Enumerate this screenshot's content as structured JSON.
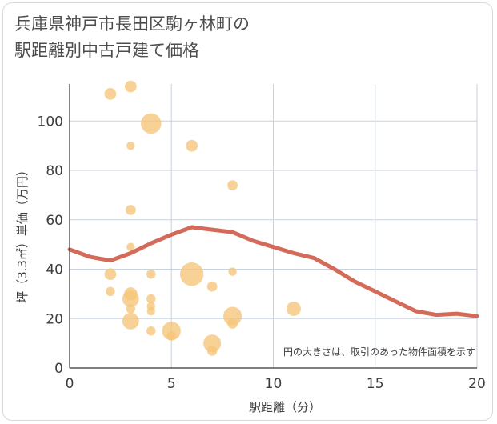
{
  "header": {
    "title": "兵庫県神戸市長田区駒ヶ林町の\n駅距離別中古戸建て価格"
  },
  "colors": {
    "bubble": "#f5c57a",
    "line": "#d46a5a",
    "grid": "#c8d2dc"
  },
  "chart_data": {
    "type": "scatter",
    "xlabel": "駅距離（分）",
    "ylabel": "坪（3.3㎡）単価（万円）",
    "xlim": [
      0,
      20
    ],
    "ylim": [
      0,
      115
    ],
    "xticks": [
      0,
      5,
      10,
      15,
      20
    ],
    "yticks": [
      0,
      20,
      40,
      60,
      80,
      100
    ],
    "note": "円の大きさは、取引のあった物件面積を示す",
    "points": [
      {
        "x": 2,
        "y": 111,
        "size": 2
      },
      {
        "x": 3,
        "y": 114,
        "size": 2
      },
      {
        "x": 4,
        "y": 99,
        "size": 6
      },
      {
        "x": 3,
        "y": 90,
        "size": 1
      },
      {
        "x": 6,
        "y": 90,
        "size": 2
      },
      {
        "x": 3,
        "y": 64,
        "size": 1.5
      },
      {
        "x": 8,
        "y": 74,
        "size": 1.5
      },
      {
        "x": 3,
        "y": 49,
        "size": 1
      },
      {
        "x": 2,
        "y": 38,
        "size": 2
      },
      {
        "x": 4,
        "y": 38,
        "size": 1.2
      },
      {
        "x": 6,
        "y": 38,
        "size": 8
      },
      {
        "x": 8,
        "y": 39,
        "size": 1
      },
      {
        "x": 7,
        "y": 33,
        "size": 1.5
      },
      {
        "x": 2,
        "y": 31,
        "size": 1.2
      },
      {
        "x": 3,
        "y": 30,
        "size": 2.5
      },
      {
        "x": 3,
        "y": 28,
        "size": 4
      },
      {
        "x": 4,
        "y": 28,
        "size": 1.2
      },
      {
        "x": 3,
        "y": 24,
        "size": 1.2
      },
      {
        "x": 4,
        "y": 25,
        "size": 1
      },
      {
        "x": 4,
        "y": 23,
        "size": 1
      },
      {
        "x": 3,
        "y": 19,
        "size": 4
      },
      {
        "x": 8,
        "y": 21,
        "size": 5
      },
      {
        "x": 8,
        "y": 18,
        "size": 1.5
      },
      {
        "x": 11,
        "y": 24,
        "size": 3
      },
      {
        "x": 4,
        "y": 15,
        "size": 1.2
      },
      {
        "x": 5,
        "y": 15,
        "size": 5
      },
      {
        "x": 5,
        "y": 13,
        "size": 1.2
      },
      {
        "x": 7,
        "y": 10,
        "size": 4.5
      },
      {
        "x": 7,
        "y": 7,
        "size": 1.5
      }
    ],
    "trend": [
      {
        "x": 0,
        "y": 48
      },
      {
        "x": 1,
        "y": 45
      },
      {
        "x": 2,
        "y": 43.5
      },
      {
        "x": 3,
        "y": 46.5
      },
      {
        "x": 4,
        "y": 50.5
      },
      {
        "x": 5,
        "y": 54
      },
      {
        "x": 6,
        "y": 57
      },
      {
        "x": 7,
        "y": 56
      },
      {
        "x": 8,
        "y": 55
      },
      {
        "x": 9,
        "y": 51.5
      },
      {
        "x": 10,
        "y": 49
      },
      {
        "x": 11,
        "y": 46.5
      },
      {
        "x": 12,
        "y": 44.5
      },
      {
        "x": 13,
        "y": 40
      },
      {
        "x": 14,
        "y": 35
      },
      {
        "x": 15,
        "y": 31
      },
      {
        "x": 16,
        "y": 27
      },
      {
        "x": 17,
        "y": 23
      },
      {
        "x": 18,
        "y": 21.5
      },
      {
        "x": 19,
        "y": 22
      },
      {
        "x": 20,
        "y": 21
      }
    ]
  }
}
